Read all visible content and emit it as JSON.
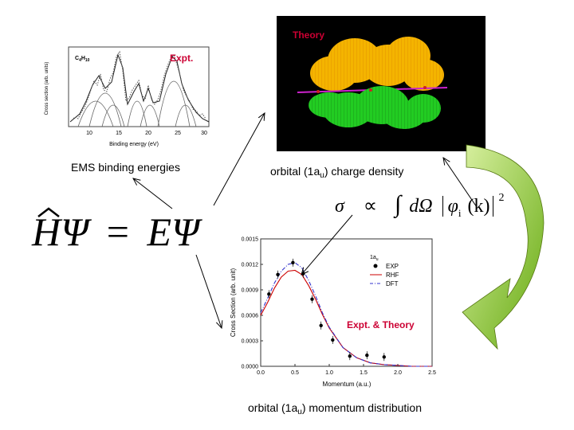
{
  "labels": {
    "ems_binding": "EMS binding energies",
    "charge_density_pre": "orbital (1a",
    "charge_density_sub": "u",
    "charge_density_post": ") charge density",
    "momentum_dist_pre": "orbital (1a",
    "momentum_dist_sub": "u",
    "momentum_dist_post": ") momentum distribution",
    "theory": "Theory",
    "expt": "Expt.",
    "expt_theory": "Expt. & Theory"
  },
  "equations": {
    "schrodinger_lhs": "HΨ",
    "schrodinger_eq": "=",
    "schrodinger_rhs": "EΨ",
    "sigma": "σ",
    "propto": "∝",
    "integral": "∫",
    "dOmega": "dΩ",
    "phi": "φ",
    "phi_sub": "i",
    "k_arg": "(k)",
    "power": "2"
  },
  "ems_chart": {
    "molecule": "C",
    "molecule_sub1": "4",
    "molecule_h": "H",
    "molecule_sub2": "10",
    "xlabel": "Binding energy (eV)",
    "ylabel": "Cross section (arb. units)",
    "xticks": [
      "10",
      "15",
      "20",
      "25",
      "30"
    ]
  },
  "chart_data": {
    "type": "line",
    "title": "",
    "legend_title": "1a",
    "legend_title_sub": "u",
    "xlabel": "Momentum (a.u.)",
    "ylabel": "Cross Section (arb. unit)",
    "xlim": [
      0.0,
      2.5
    ],
    "ylim": [
      0.0,
      0.0015
    ],
    "xticks": [
      "0.0",
      "0.5",
      "1.0",
      "1.5",
      "2.0",
      "2.5"
    ],
    "yticks": [
      "0.0000",
      "0.0003",
      "0.0006",
      "0.0009",
      "0.0012",
      "0.0015"
    ],
    "series": [
      {
        "name": "EXP",
        "style": "points",
        "color": "#000000",
        "x": [
          0.12,
          0.25,
          0.47,
          0.62,
          0.75,
          0.88,
          1.05,
          1.3,
          1.55,
          1.8
        ],
        "y": [
          0.00085,
          0.00108,
          0.00122,
          0.00109,
          0.00079,
          0.00048,
          0.00031,
          0.00012,
          0.00013,
          0.00011
        ]
      },
      {
        "name": "RHF",
        "style": "solid",
        "color": "#cc0000",
        "x": [
          0.0,
          0.1,
          0.2,
          0.3,
          0.4,
          0.5,
          0.6,
          0.7,
          0.8,
          0.9,
          1.0,
          1.2,
          1.4,
          1.6,
          1.8,
          2.0,
          2.2,
          2.5
        ],
        "y": [
          0.0006,
          0.00075,
          0.00092,
          0.00105,
          0.00112,
          0.00113,
          0.00108,
          0.00095,
          0.00079,
          0.00061,
          0.00045,
          0.00022,
          0.0001,
          4e-05,
          2e-05,
          1e-05,
          0.0,
          0.0
        ]
      },
      {
        "name": "DFT",
        "style": "dashdot",
        "color": "#3333cc",
        "x": [
          0.0,
          0.1,
          0.2,
          0.3,
          0.4,
          0.5,
          0.6,
          0.7,
          0.8,
          0.9,
          1.0,
          1.2,
          1.4,
          1.6,
          1.8,
          2.0,
          2.2,
          2.5
        ],
        "y": [
          0.00063,
          0.0008,
          0.00098,
          0.00112,
          0.0012,
          0.00122,
          0.00116,
          0.00101,
          0.00083,
          0.00063,
          0.00046,
          0.00022,
          0.0001,
          4e-05,
          2e-05,
          1e-05,
          0.0,
          0.0
        ]
      }
    ]
  },
  "colors": {
    "red_label": "#cc0033",
    "orbital_top": "#f4b400",
    "orbital_bottom": "#22cc22",
    "arrow_green": "#88bb22"
  }
}
